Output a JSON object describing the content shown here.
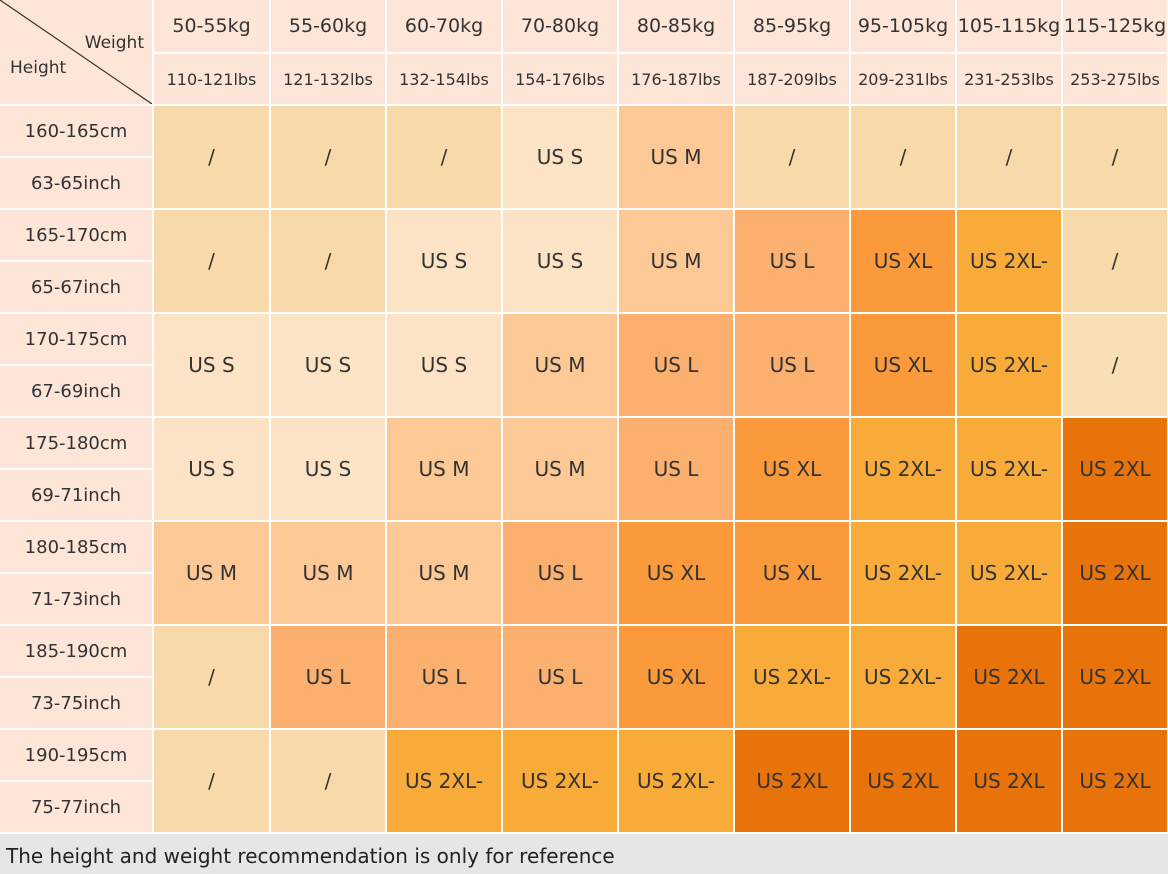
{
  "header": {
    "weight_label": "Weight",
    "height_label": "Height",
    "columns": [
      {
        "kg": "50-55kg",
        "lbs": "110-121lbs"
      },
      {
        "kg": "55-60kg",
        "lbs": "121-132lbs"
      },
      {
        "kg": "60-70kg",
        "lbs": "132-154lbs"
      },
      {
        "kg": "70-80kg",
        "lbs": "154-176lbs"
      },
      {
        "kg": "80-85kg",
        "lbs": "176-187lbs"
      },
      {
        "kg": "85-95kg",
        "lbs": "187-209lbs"
      },
      {
        "kg": "95-105kg",
        "lbs": "209-231lbs"
      },
      {
        "kg": "105-115kg",
        "lbs": "231-253lbs"
      },
      {
        "kg": "115-125kg",
        "lbs": "253-275lbs"
      }
    ]
  },
  "rows": [
    {
      "cm": "160-165cm",
      "inch": "63-65inch",
      "cells": [
        {
          "text": "/",
          "color": "#f7d9aa"
        },
        {
          "text": "/",
          "color": "#f7d9aa"
        },
        {
          "text": "/",
          "color": "#f7d9aa"
        },
        {
          "text": "US S",
          "color": "#fde3c6"
        },
        {
          "text": "US M",
          "color": "#fcc896"
        },
        {
          "text": "/",
          "color": "#f7d9aa"
        },
        {
          "text": "/",
          "color": "#f7d9aa"
        },
        {
          "text": "/",
          "color": "#f7d9aa"
        },
        {
          "text": "/",
          "color": "#f7d9aa"
        }
      ]
    },
    {
      "cm": "165-170cm",
      "inch": "65-67inch",
      "cells": [
        {
          "text": "/",
          "color": "#f7d9aa"
        },
        {
          "text": "/",
          "color": "#f7d9aa"
        },
        {
          "text": "US S",
          "color": "#fde3c6"
        },
        {
          "text": "US S",
          "color": "#fde3c6"
        },
        {
          "text": "US M",
          "color": "#fcc896"
        },
        {
          "text": "US L",
          "color": "#fbb070"
        },
        {
          "text": "US XL",
          "color": "#fa9a3a"
        },
        {
          "text": "US 2XL-",
          "color": "#f9ab3a"
        },
        {
          "text": "/",
          "color": "#f7d9aa"
        }
      ]
    },
    {
      "cm": "170-175cm",
      "inch": "67-69inch",
      "cells": [
        {
          "text": "US S",
          "color": "#fde3c6"
        },
        {
          "text": "US S",
          "color": "#fde3c6"
        },
        {
          "text": "US S",
          "color": "#fde3c6"
        },
        {
          "text": "US M",
          "color": "#fcc896"
        },
        {
          "text": "US L",
          "color": "#fbb070"
        },
        {
          "text": "US L",
          "color": "#fbb070"
        },
        {
          "text": "US XL",
          "color": "#fa9a3a"
        },
        {
          "text": "US 2XL-",
          "color": "#f9ab3a"
        },
        {
          "text": "/",
          "color": "#f9dfb5"
        }
      ]
    },
    {
      "cm": "175-180cm",
      "inch": "69-71inch",
      "cells": [
        {
          "text": "US S",
          "color": "#fde3c6"
        },
        {
          "text": "US S",
          "color": "#fde3c6"
        },
        {
          "text": "US M",
          "color": "#fcc896"
        },
        {
          "text": "US M",
          "color": "#fcc896"
        },
        {
          "text": "US L",
          "color": "#fbb070"
        },
        {
          "text": "US XL",
          "color": "#fa9a3a"
        },
        {
          "text": "US 2XL-",
          "color": "#f9ab3a"
        },
        {
          "text": "US 2XL-",
          "color": "#f9ab3a"
        },
        {
          "text": "US 2XL",
          "color": "#e8730a"
        }
      ]
    },
    {
      "cm": "180-185cm",
      "inch": "71-73inch",
      "cells": [
        {
          "text": "US M",
          "color": "#fcc896"
        },
        {
          "text": "US M",
          "color": "#fcc896"
        },
        {
          "text": "US M",
          "color": "#fcc896"
        },
        {
          "text": "US L",
          "color": "#fbb070"
        },
        {
          "text": "US XL",
          "color": "#fa9a3a"
        },
        {
          "text": "US XL",
          "color": "#fa9a3a"
        },
        {
          "text": "US 2XL-",
          "color": "#f9ab3a"
        },
        {
          "text": "US 2XL-",
          "color": "#f9ab3a"
        },
        {
          "text": "US 2XL",
          "color": "#e8730a"
        }
      ]
    },
    {
      "cm": "185-190cm",
      "inch": "73-75inch",
      "cells": [
        {
          "text": "/",
          "color": "#f7d9aa"
        },
        {
          "text": "US L",
          "color": "#fbb070"
        },
        {
          "text": "US L",
          "color": "#fbb070"
        },
        {
          "text": "US L",
          "color": "#fbb070"
        },
        {
          "text": "US XL",
          "color": "#fa9a3a"
        },
        {
          "text": "US 2XL-",
          "color": "#f9ab3a"
        },
        {
          "text": "US 2XL-",
          "color": "#f9ab3a"
        },
        {
          "text": "US 2XL",
          "color": "#e8730a"
        },
        {
          "text": "US 2XL",
          "color": "#e8730a"
        }
      ]
    },
    {
      "cm": "190-195cm",
      "inch": "75-77inch",
      "cells": [
        {
          "text": "/",
          "color": "#f7d9aa"
        },
        {
          "text": "/",
          "color": "#f7d9aa"
        },
        {
          "text": "US 2XL-",
          "color": "#f9ab3a"
        },
        {
          "text": "US 2XL-",
          "color": "#f9ab3a"
        },
        {
          "text": "US 2XL-",
          "color": "#f9ab3a"
        },
        {
          "text": "US 2XL",
          "color": "#e8730a"
        },
        {
          "text": "US 2XL",
          "color": "#e8730a"
        },
        {
          "text": "US 2XL",
          "color": "#e8730a"
        },
        {
          "text": "US 2XL",
          "color": "#e8730a"
        }
      ]
    }
  ],
  "footer": "The height and weight recommendation is only for reference"
}
